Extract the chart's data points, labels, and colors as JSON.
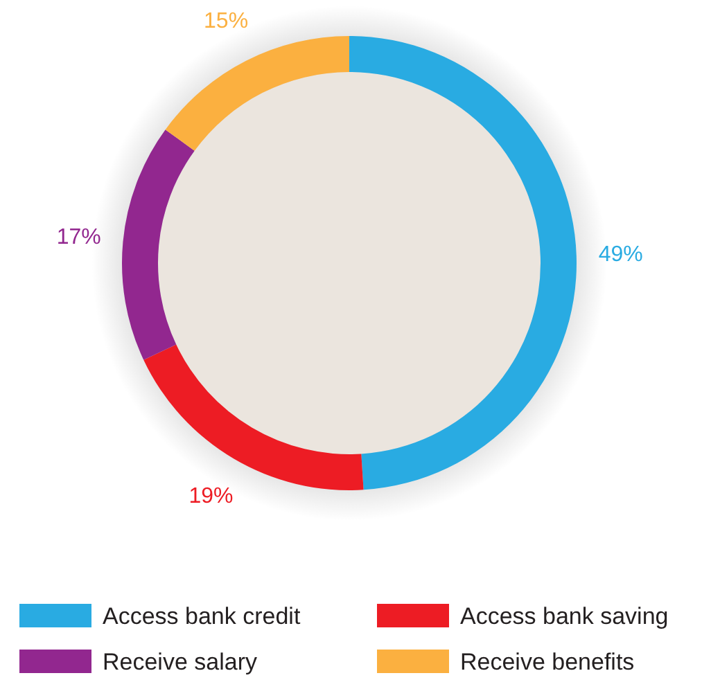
{
  "chart_data": {
    "type": "donut",
    "categories": [
      "Access bank credit",
      "Access bank saving",
      "Receive salary",
      "Receive benefits"
    ],
    "values": [
      49,
      19,
      17,
      15
    ],
    "colors": [
      "#29abe2",
      "#ed1c24",
      "#92278f",
      "#fbb040"
    ],
    "value_labels": [
      "49%",
      "19%",
      "17%",
      "15%"
    ],
    "legend": "bottom"
  }
}
